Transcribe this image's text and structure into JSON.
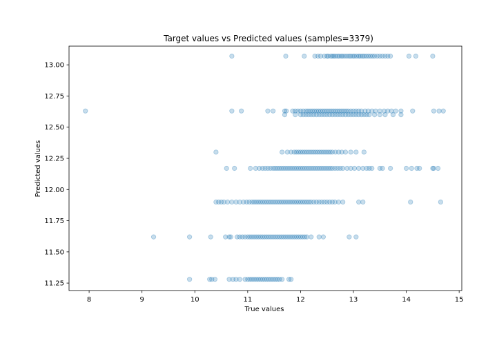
{
  "chart_data": {
    "type": "scatter",
    "title": "Target values vs Predicted values (samples=3379)",
    "xlabel": "True values",
    "ylabel": "Predicted values",
    "xlim": [
      7.62,
      15.05
    ],
    "ylim": [
      11.19,
      13.15
    ],
    "xticks": [
      8,
      9,
      10,
      11,
      12,
      13,
      14,
      15
    ],
    "yticks": [
      11.25,
      11.5,
      11.75,
      12.0,
      12.25,
      12.5,
      12.75,
      13.0
    ],
    "ytick_labels": [
      "11.25",
      "11.50",
      "11.75",
      "12.00",
      "12.25",
      "12.50",
      "12.75",
      "13.00"
    ],
    "grid": false,
    "marker_color": "#1f77b4",
    "marker_alpha": 0.25,
    "series": [
      {
        "y": 13.07,
        "x": [
          10.7,
          11.72,
          12.07,
          12.27,
          12.33,
          12.38,
          12.45,
          12.5,
          12.52,
          12.57,
          12.6,
          12.63,
          12.66,
          12.7,
          12.73,
          12.77,
          12.8,
          12.84,
          12.88,
          12.92,
          12.95,
          12.99,
          13.02,
          13.06,
          13.1,
          13.13,
          13.17,
          13.2,
          13.24,
          13.28,
          13.32,
          13.36,
          13.4,
          13.45,
          13.5,
          13.55,
          13.6,
          13.65,
          13.7,
          14.05,
          14.18,
          14.5
        ]
      },
      {
        "y": 12.63,
        "x": [
          7.93,
          10.7,
          10.88,
          11.38,
          11.48,
          11.7,
          11.73,
          11.85,
          11.9,
          11.95,
          12.0,
          12.05,
          12.1,
          12.14,
          12.18,
          12.22,
          12.26,
          12.3,
          12.34,
          12.38,
          12.42,
          12.46,
          12.5,
          12.54,
          12.58,
          12.62,
          12.66,
          12.7,
          12.74,
          12.78,
          12.82,
          12.86,
          12.9,
          12.95,
          13.0,
          13.05,
          13.1,
          13.15,
          13.22,
          13.28,
          13.35,
          13.42,
          13.5,
          13.58,
          13.65,
          13.72,
          13.8,
          13.9,
          14.12,
          14.52,
          14.62,
          14.7
        ]
      },
      {
        "y": 12.6,
        "x": [
          11.7,
          11.9,
          12.0,
          12.05,
          12.1,
          12.15,
          12.2,
          12.25,
          12.3,
          12.35,
          12.4,
          12.45,
          12.5,
          12.55,
          12.6,
          12.65,
          12.7,
          12.75,
          12.8,
          12.85,
          12.9,
          12.95,
          13.0,
          13.05,
          13.1,
          13.15,
          13.2,
          13.25,
          13.3,
          13.4,
          13.5,
          13.6,
          13.75,
          13.9
        ]
      },
      {
        "y": 12.3,
        "x": [
          10.4,
          11.65,
          11.75,
          11.82,
          11.88,
          11.92,
          11.96,
          12.0,
          12.04,
          12.08,
          12.12,
          12.16,
          12.2,
          12.24,
          12.28,
          12.32,
          12.36,
          12.4,
          12.44,
          12.48,
          12.52,
          12.56,
          12.6,
          12.66,
          12.72,
          12.78,
          12.85,
          12.95,
          13.05,
          13.2
        ]
      },
      {
        "y": 12.17,
        "x": [
          10.6,
          10.75,
          11.05,
          11.15,
          11.22,
          11.28,
          11.33,
          11.38,
          11.43,
          11.48,
          11.52,
          11.56,
          11.6,
          11.64,
          11.68,
          11.72,
          11.76,
          11.8,
          11.84,
          11.88,
          11.92,
          11.96,
          12.0,
          12.04,
          12.08,
          12.12,
          12.16,
          12.2,
          12.24,
          12.28,
          12.32,
          12.36,
          12.4,
          12.44,
          12.48,
          12.52,
          12.56,
          12.6,
          12.65,
          12.7,
          12.75,
          12.8,
          12.88,
          12.95,
          13.02,
          13.1,
          13.18,
          13.25,
          13.3,
          13.35,
          13.5,
          13.55,
          13.7,
          14.0,
          14.1,
          14.2,
          14.25,
          14.5,
          14.52,
          14.6
        ]
      },
      {
        "y": 11.9,
        "x": [
          10.4,
          10.45,
          10.5,
          10.55,
          10.62,
          10.7,
          10.78,
          10.85,
          10.92,
          10.98,
          11.03,
          11.08,
          11.12,
          11.16,
          11.2,
          11.24,
          11.28,
          11.32,
          11.36,
          11.4,
          11.44,
          11.48,
          11.52,
          11.56,
          11.6,
          11.64,
          11.68,
          11.72,
          11.76,
          11.8,
          11.84,
          11.88,
          11.92,
          11.96,
          12.0,
          12.04,
          12.08,
          12.12,
          12.16,
          12.2,
          12.25,
          12.3,
          12.35,
          12.4,
          12.45,
          12.5,
          12.55,
          12.6,
          12.65,
          12.72,
          12.8,
          13.1,
          13.18,
          14.08,
          14.65
        ]
      },
      {
        "y": 11.62,
        "x": [
          9.22,
          9.9,
          10.3,
          10.58,
          10.65,
          10.68,
          10.8,
          10.85,
          10.9,
          10.95,
          11.0,
          11.04,
          11.08,
          11.12,
          11.16,
          11.2,
          11.24,
          11.28,
          11.32,
          11.36,
          11.4,
          11.44,
          11.48,
          11.52,
          11.56,
          11.6,
          11.64,
          11.68,
          11.72,
          11.76,
          11.8,
          11.84,
          11.88,
          11.92,
          11.96,
          12.0,
          12.04,
          12.08,
          12.12,
          12.2,
          12.35,
          12.43,
          12.92,
          13.05
        ]
      },
      {
        "y": 11.28,
        "x": [
          9.9,
          10.28,
          10.32,
          10.38,
          10.65,
          10.72,
          10.78,
          10.85,
          10.95,
          11.0,
          11.04,
          11.08,
          11.12,
          11.16,
          11.2,
          11.24,
          11.28,
          11.32,
          11.36,
          11.4,
          11.44,
          11.48,
          11.52,
          11.56,
          11.6,
          11.65,
          11.78,
          11.82
        ]
      }
    ]
  }
}
